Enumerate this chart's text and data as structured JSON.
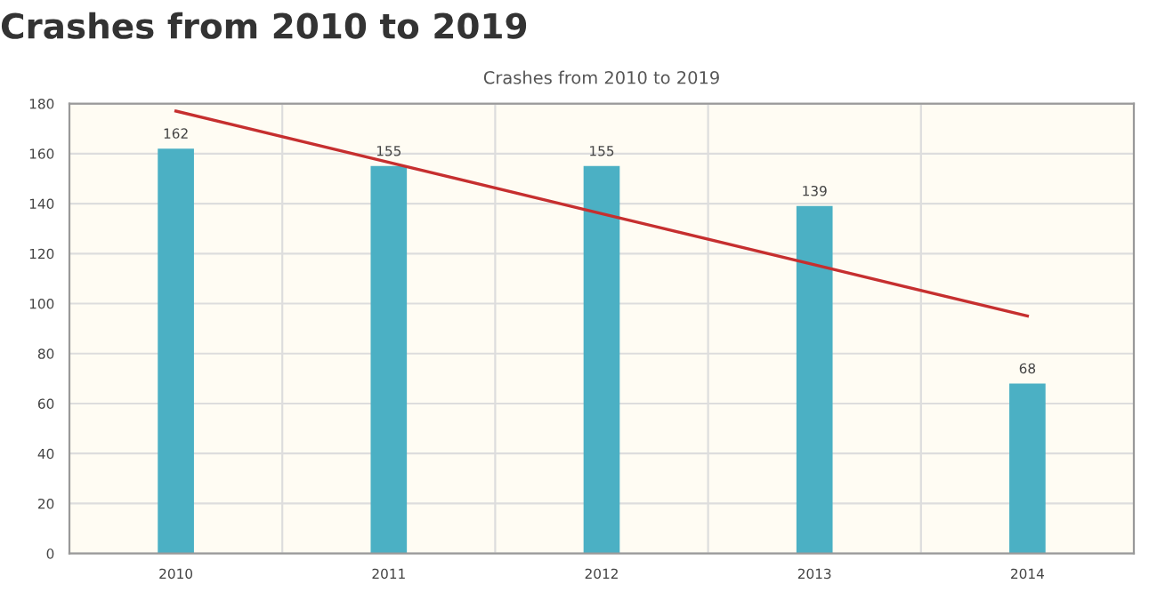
{
  "chart_data": {
    "type": "bar",
    "title": "Crashes from 2010 to 2019",
    "subtitle": "Crashes from 2010 to 2019",
    "categories": [
      "2010",
      "2011",
      "2012",
      "2013",
      "2014"
    ],
    "series": [
      {
        "color": "#4bb0c4",
        "values": [
          162,
          155,
          155,
          139,
          68
        ],
        "data_labels": true
      },
      {
        "type": "line",
        "color": "#c62f2f",
        "values": [
          177,
          156.5,
          136,
          115.5,
          95
        ]
      }
    ],
    "ylim": [
      0,
      180
    ],
    "yticks": [
      0,
      20,
      40,
      60,
      80,
      100,
      120,
      140,
      160,
      180
    ],
    "grid": true,
    "legend": false
  }
}
